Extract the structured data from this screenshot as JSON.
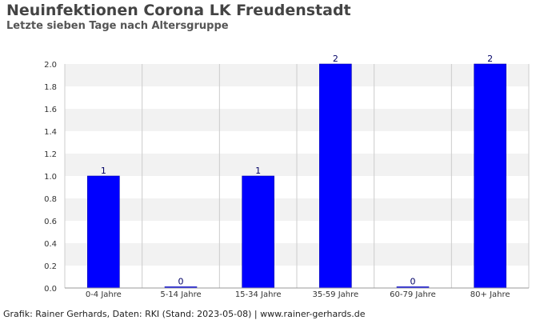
{
  "header": {
    "title": "Neuinfektionen Corona LK Freudenstadt",
    "subtitle": "Letzte sieben Tage nach Altersgruppe"
  },
  "footer": {
    "credit": "Grafik: Rainer Gerhards, Daten: RKI (Stand: 2023-05-08) | www.rainer-gerhards.de"
  },
  "colors": {
    "bar": "#0000ff",
    "band": "#f2f2f2",
    "axis_text": "#333333",
    "label_text": "#000066"
  },
  "chart_data": {
    "type": "bar",
    "title": "Neuinfektionen Corona LK Freudenstadt",
    "subtitle": "Letzte sieben Tage nach Altersgruppe",
    "categories": [
      "0-4 Jahre",
      "5-14 Jahre",
      "15-34 Jahre",
      "35-59 Jahre",
      "60-79 Jahre",
      "80+ Jahre"
    ],
    "values": [
      1,
      0,
      1,
      2,
      0,
      2
    ],
    "data_labels": [
      "1",
      "0",
      "1",
      "2",
      "0",
      "2"
    ],
    "yticks": [
      "0.0",
      "0.2",
      "0.4",
      "0.6",
      "0.8",
      "1.0",
      "1.2",
      "1.4",
      "1.6",
      "1.8",
      "2.0"
    ],
    "ylim": [
      0,
      2
    ],
    "xlabel": "",
    "ylabel": "",
    "grid": true,
    "legend": "none"
  }
}
